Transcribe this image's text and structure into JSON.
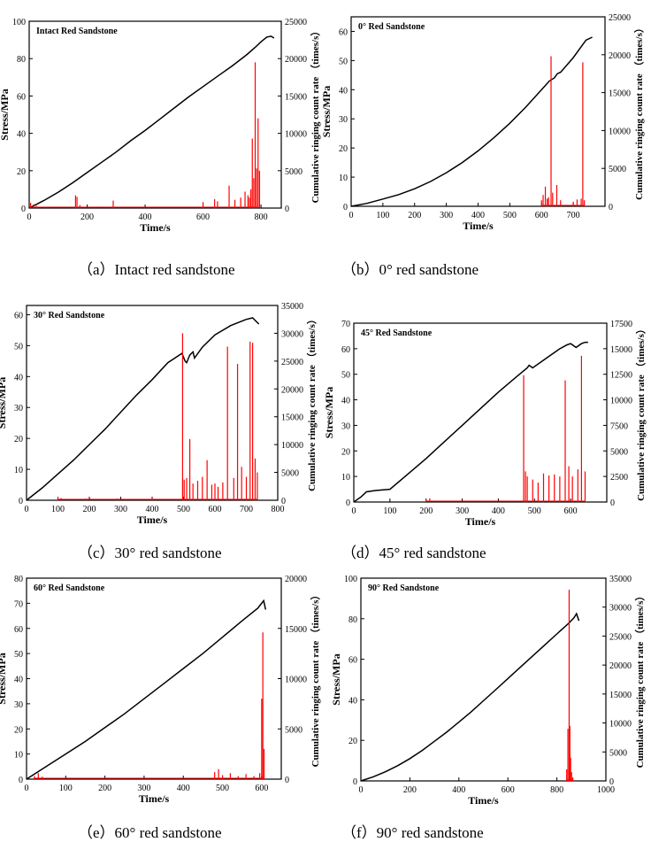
{
  "figure": {
    "colors": {
      "stress": "#000000",
      "ringing": "#ff0000",
      "axis": "#000000"
    },
    "captions": [
      "（a）Intact red sandstone",
      "（b）0° red sandstone",
      "（c）30° red sandstone",
      "（d）45° red sandstone",
      "（e）60° red sandstone",
      "（f）90° red sandstone"
    ]
  },
  "chart_data": [
    {
      "type": "line",
      "title": "Intact Red Sandstone",
      "xlabel": "Time/s",
      "ylabel": "Stress/MPa",
      "y2label": "Cumulative ringing count rate （times/s）",
      "xlim": [
        0,
        870
      ],
      "xticks": [
        0,
        200,
        400,
        600,
        800
      ],
      "ylim": [
        0,
        100
      ],
      "yticks": [
        0,
        20,
        40,
        60,
        80,
        100
      ],
      "y2lim": [
        0,
        25000
      ],
      "y2ticks": [
        0,
        5000,
        10000,
        15000,
        20000,
        25000
      ],
      "series": [
        {
          "name": "Stress",
          "axis": "left",
          "color": "#000000",
          "x": [
            0,
            50,
            100,
            150,
            200,
            250,
            300,
            350,
            400,
            450,
            500,
            550,
            600,
            650,
            700,
            750,
            780,
            800,
            820,
            835,
            845
          ],
          "y": [
            0,
            4,
            8.5,
            13.5,
            19,
            24.5,
            30,
            36,
            41.5,
            47.5,
            53.5,
            59.5,
            65,
            70.5,
            76,
            82,
            86,
            89,
            91.5,
            92,
            91
          ]
        },
        {
          "name": "Ringing count rate",
          "axis": "right",
          "color": "#ff0000",
          "kind": "spikes",
          "x": [
            5,
            15,
            25,
            160,
            165,
            175,
            290,
            600,
            640,
            650,
            690,
            710,
            730,
            745,
            755,
            760,
            765,
            770,
            775,
            780,
            785,
            790,
            795
          ],
          "y": [
            700,
            500,
            300,
            1700,
            1500,
            400,
            1000,
            800,
            1200,
            900,
            3000,
            1100,
            1400,
            2200,
            1700,
            1400,
            2500,
            9300,
            4000,
            19500,
            5300,
            12000,
            5000
          ]
        }
      ]
    },
    {
      "type": "line",
      "title": "0° Red Sandstone",
      "xlabel": "Time/s",
      "ylabel": "Stress/MPa",
      "y2label": "Cumulative ringing count rate （times/s）",
      "xlim": [
        0,
        800
      ],
      "xticks": [
        0,
        100,
        200,
        300,
        400,
        500,
        600,
        700
      ],
      "ylim": [
        0,
        65
      ],
      "yticks": [
        0,
        10,
        20,
        30,
        40,
        50,
        60
      ],
      "y2lim": [
        0,
        25000
      ],
      "y2ticks": [
        0,
        5000,
        10000,
        15000,
        20000,
        25000
      ],
      "series": [
        {
          "name": "Stress",
          "axis": "left",
          "color": "#000000",
          "x": [
            0,
            50,
            100,
            150,
            200,
            250,
            300,
            350,
            400,
            450,
            500,
            550,
            600,
            625,
            640,
            650,
            660,
            700,
            740,
            760
          ],
          "y": [
            0,
            1,
            2.5,
            4,
            6,
            8.5,
            11.5,
            15,
            19,
            23.5,
            28.5,
            34,
            40,
            43,
            44,
            45.5,
            46,
            51,
            57,
            58
          ]
        },
        {
          "name": "Ringing count rate",
          "axis": "right",
          "color": "#ff0000",
          "kind": "spikes",
          "x": [
            600,
            605,
            612,
            618,
            622,
            630,
            635,
            648,
            660,
            700,
            712,
            725,
            730,
            735
          ],
          "y": [
            800,
            1500,
            2600,
            1000,
            1200,
            19800,
            1800,
            2800,
            800,
            600,
            900,
            1000,
            19000,
            800
          ]
        }
      ]
    },
    {
      "type": "line",
      "title": "30° Red Sandstone",
      "xlabel": "Time/s",
      "ylabel": "Stress/MPa",
      "y2label": "Cumulative ringing count rate （times/s）",
      "xlim": [
        0,
        800
      ],
      "xticks": [
        0,
        100,
        200,
        300,
        400,
        500,
        600,
        700,
        800
      ],
      "ylim": [
        0,
        63
      ],
      "yticks": [
        0,
        10,
        20,
        30,
        40,
        50,
        60
      ],
      "y2lim": [
        0,
        35000
      ],
      "y2ticks": [
        0,
        5000,
        10000,
        15000,
        20000,
        25000,
        30000,
        35000
      ],
      "series": [
        {
          "name": "Stress",
          "axis": "left",
          "color": "#000000",
          "x": [
            0,
            50,
            100,
            150,
            200,
            250,
            300,
            350,
            400,
            450,
            495,
            505,
            510,
            520,
            530,
            535,
            560,
            600,
            650,
            700,
            720,
            730,
            740
          ],
          "y": [
            0,
            4,
            8.5,
            13,
            18,
            23,
            28.5,
            34,
            39,
            44.5,
            47.5,
            45,
            44.5,
            47,
            48,
            46,
            49.5,
            53.5,
            56.5,
            58.5,
            59,
            58,
            57
          ]
        },
        {
          "name": "Ringing count rate",
          "axis": "right",
          "color": "#ff0000",
          "kind": "spikes",
          "x": [
            100,
            110,
            190,
            290,
            400,
            497,
            502,
            510,
            520,
            530,
            545,
            560,
            575,
            590,
            600,
            610,
            625,
            640,
            660,
            672,
            685,
            700,
            712,
            720,
            728,
            735
          ],
          "y": [
            600,
            400,
            300,
            300,
            400,
            30000,
            3700,
            4000,
            11000,
            3000,
            3500,
            4200,
            7200,
            2800,
            3000,
            2400,
            3200,
            27600,
            4000,
            24500,
            6000,
            4200,
            28500,
            28300,
            7500,
            5000
          ]
        }
      ]
    },
    {
      "type": "line",
      "title": "45° Red Sandstone",
      "xlabel": "Time/s",
      "ylabel": "Stress/MPa",
      "y2label": "Cumulative ringing count rate （times/s）",
      "xlim": [
        0,
        700
      ],
      "xticks": [
        0,
        100,
        200,
        300,
        400,
        500,
        600
      ],
      "ylim": [
        0,
        70
      ],
      "yticks": [
        0,
        10,
        20,
        30,
        40,
        50,
        60,
        70
      ],
      "y2lim": [
        0,
        17500
      ],
      "y2ticks": [
        0,
        2500,
        5000,
        7500,
        10000,
        12500,
        15000,
        17500
      ],
      "series": [
        {
          "name": "Stress",
          "axis": "left",
          "color": "#000000",
          "x": [
            0,
            20,
            35,
            60,
            100,
            150,
            200,
            250,
            300,
            350,
            400,
            450,
            480,
            485,
            495,
            530,
            570,
            590,
            600,
            615,
            630,
            640,
            648
          ],
          "y": [
            0,
            2,
            4,
            4.5,
            5,
            11,
            17,
            23.5,
            30,
            36.5,
            43,
            49,
            52.5,
            53.5,
            52.5,
            56,
            60,
            61.5,
            62,
            60.5,
            62,
            62.5,
            62.5
          ]
        },
        {
          "name": "Ringing count rate",
          "axis": "right",
          "color": "#ff0000",
          "kind": "spikes",
          "x": [
            200,
            210,
            470,
            475,
            480,
            495,
            510,
            525,
            540,
            555,
            570,
            585,
            595,
            605,
            620,
            630,
            640
          ],
          "y": [
            250,
            350,
            12400,
            3000,
            2500,
            2200,
            1900,
            2800,
            2600,
            2700,
            2500,
            11900,
            3500,
            2500,
            3200,
            14300,
            3000
          ]
        }
      ]
    },
    {
      "type": "line",
      "title": "60° Red Sandstone",
      "xlabel": "Time/s",
      "ylabel": "Stress/MPa",
      "y2label": "Cumulative ringing count rate （times/s）",
      "xlim": [
        0,
        650
      ],
      "xticks": [
        0,
        100,
        200,
        300,
        400,
        500,
        600
      ],
      "ylim": [
        0,
        80
      ],
      "yticks": [
        0,
        10,
        20,
        30,
        40,
        50,
        60,
        70,
        80
      ],
      "y2lim": [
        0,
        20000
      ],
      "y2ticks": [
        0,
        5000,
        10000,
        15000,
        20000
      ],
      "series": [
        {
          "name": "Stress",
          "axis": "left",
          "color": "#000000",
          "x": [
            0,
            50,
            100,
            150,
            200,
            250,
            300,
            350,
            400,
            450,
            500,
            550,
            590,
            600,
            605,
            610
          ],
          "y": [
            0,
            5,
            10,
            15,
            20.5,
            26,
            32,
            38,
            44,
            50,
            56.5,
            63,
            68,
            70,
            71,
            67.5
          ]
        },
        {
          "name": "Ringing count rate",
          "axis": "right",
          "color": "#ff0000",
          "kind": "spikes",
          "x": [
            20,
            30,
            40,
            480,
            490,
            500,
            520,
            540,
            560,
            580,
            595,
            600,
            603,
            606
          ],
          "y": [
            300,
            600,
            250,
            700,
            1000,
            400,
            600,
            300,
            500,
            300,
            600,
            8000,
            14600,
            3000
          ]
        }
      ]
    },
    {
      "type": "line",
      "title": "90° Red Sandstone",
      "xlabel": "Time/s",
      "ylabel": "Stress/MPa",
      "y2label": "Cumulative ringing count rate （times/s）",
      "xlim": [
        0,
        1000
      ],
      "xticks": [
        0,
        200,
        400,
        600,
        800,
        1000
      ],
      "ylim": [
        0,
        100
      ],
      "yticks": [
        0,
        20,
        40,
        60,
        80,
        100
      ],
      "y2lim": [
        0,
        35000
      ],
      "y2ticks": [
        0,
        5000,
        10000,
        15000,
        20000,
        25000,
        30000,
        35000
      ],
      "series": [
        {
          "name": "Stress",
          "axis": "left",
          "color": "#000000",
          "x": [
            0,
            50,
            100,
            150,
            200,
            250,
            300,
            350,
            400,
            450,
            500,
            550,
            600,
            650,
            700,
            750,
            800,
            850,
            870,
            880,
            890
          ],
          "y": [
            0,
            2,
            4.5,
            7.5,
            11,
            15,
            19.5,
            24,
            29,
            34,
            39.5,
            45,
            50.5,
            56,
            61.5,
            67,
            72.5,
            78,
            80.5,
            82.5,
            79
          ]
        },
        {
          "name": "Ringing count rate",
          "axis": "right",
          "color": "#ff0000",
          "kind": "spikes",
          "x": [
            840,
            845,
            850,
            853,
            856,
            860,
            865
          ],
          "y": [
            2000,
            9000,
            33000,
            9500,
            4000,
            1500,
            600
          ]
        }
      ]
    }
  ]
}
